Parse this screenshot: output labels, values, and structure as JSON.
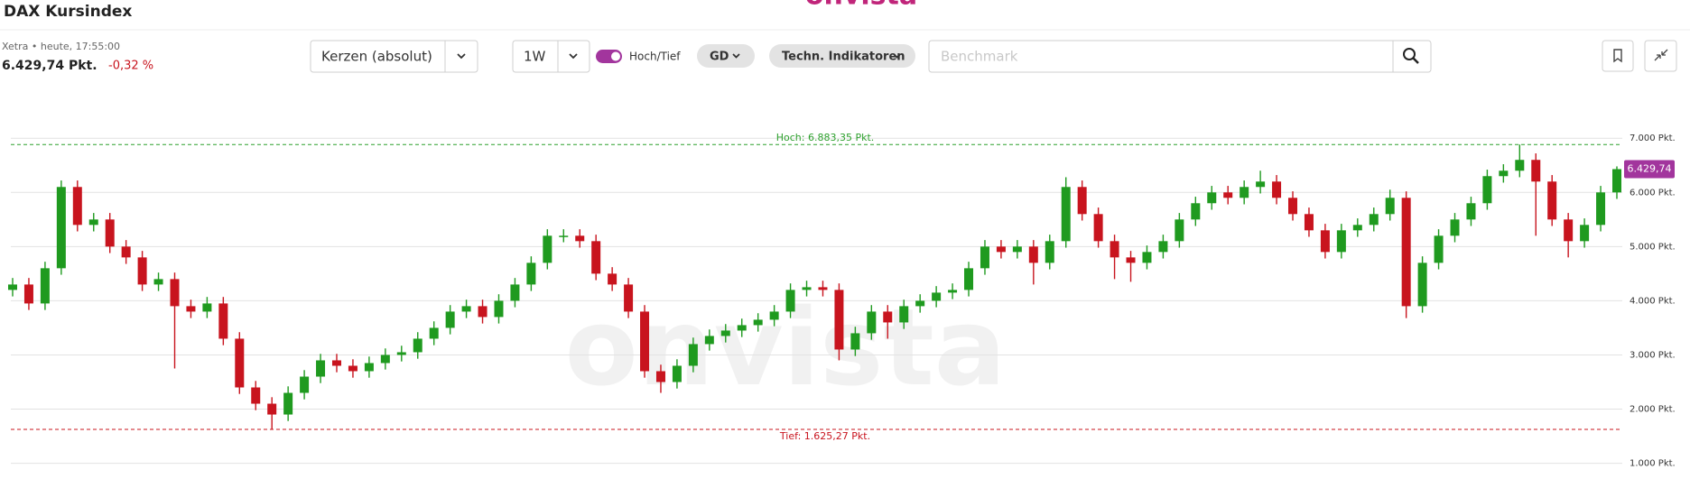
{
  "header": {
    "title": "DAX Kursindex",
    "logo": "onvista",
    "exchange": "Xetra • heute, 17:55:00",
    "price": "6.429,74 Pkt.",
    "change": "-0,32 %"
  },
  "toolbar": {
    "chart_type": "Kerzen (absolut)",
    "period": "1W",
    "toggle": "Hoch/Tief",
    "average": "GD",
    "indicators": "Techn. Indikatoren",
    "benchmark_placeholder": "Benchmark"
  },
  "watermark": "onvista",
  "chart_data": {
    "type": "candlestick",
    "open": [
      4200,
      4300,
      3950,
      4600,
      6100,
      5400,
      5500,
      5000,
      4800,
      4300,
      4400,
      3900,
      3800,
      3950,
      3300,
      2400,
      2100,
      1900,
      2300,
      2600,
      2900,
      2800,
      2700,
      2850,
      3000,
      3050,
      3300,
      3500,
      3800,
      3900,
      3700,
      4000,
      4300,
      4700,
      5200,
      5200,
      5100,
      4500,
      4300,
      3800,
      2700,
      2500,
      2800,
      3200,
      3350,
      3450,
      3550,
      3650,
      3800,
      4200,
      4250,
      4200,
      3100,
      3400,
      3800,
      3600,
      3900,
      4000,
      4150,
      4200,
      4600,
      5000,
      4900,
      5000,
      4700,
      5100,
      6100,
      5600,
      5100,
      4800,
      4700,
      4900,
      5100,
      5500,
      5800,
      6000,
      5900,
      6100,
      6200,
      5900,
      5600,
      5300,
      4900,
      5300,
      5400,
      5600,
      5900,
      3900,
      4700,
      5200,
      5500,
      5800,
      6300,
      6400,
      6600,
      6200,
      5500,
      5100,
      5400,
      6000
    ],
    "high": [
      4420,
      4420,
      4720,
      6220,
      6220,
      5620,
      5620,
      5120,
      4920,
      4520,
      4520,
      4020,
      4070,
      4070,
      3420,
      2520,
      2220,
      2420,
      2720,
      3020,
      3020,
      2920,
      2970,
      3120,
      3170,
      3420,
      3620,
      3920,
      4020,
      4020,
      4120,
      4420,
      4820,
      5320,
      5320,
      5320,
      5220,
      4620,
      4420,
      3920,
      2820,
      2920,
      3320,
      3470,
      3570,
      3670,
      3770,
      3920,
      4320,
      4370,
      4370,
      4320,
      3520,
      3920,
      3920,
      4020,
      4120,
      4270,
      4320,
      4720,
      5120,
      5120,
      5120,
      5120,
      5220,
      6280,
      6220,
      5720,
      5220,
      4920,
      5020,
      5220,
      5620,
      5920,
      6120,
      6120,
      6220,
      6400,
      6320,
      6020,
      5720,
      5420,
      5420,
      5520,
      5720,
      6050,
      6020,
      4820,
      5320,
      5620,
      5920,
      6420,
      6520,
      6883.35,
      6720,
      6320,
      5620,
      5520,
      6120,
      6480
    ],
    "low": [
      4080,
      3830,
      3830,
      4480,
      5280,
      5280,
      4880,
      4680,
      4180,
      4180,
      2750,
      3680,
      3680,
      3180,
      2280,
      1980,
      1625.27,
      1780,
      2180,
      2480,
      2680,
      2580,
      2580,
      2730,
      2880,
      2930,
      3180,
      3380,
      3680,
      3580,
      3580,
      3880,
      4180,
      4580,
      5080,
      4980,
      4380,
      4180,
      3680,
      2580,
      2300,
      2380,
      2680,
      3080,
      3230,
      3330,
      3430,
      3530,
      3680,
      4080,
      4080,
      2900,
      2980,
      3280,
      3300,
      3480,
      3780,
      3880,
      4030,
      4080,
      4480,
      4780,
      4780,
      4300,
      4580,
      4980,
      5480,
      4980,
      4400,
      4350,
      4580,
      4780,
      4980,
      5380,
      5680,
      5780,
      5780,
      5980,
      5780,
      5480,
      5180,
      4780,
      4780,
      5180,
      5280,
      5480,
      3680,
      3780,
      4580,
      5080,
      5380,
      5680,
      6180,
      6280,
      5200,
      5380,
      4800,
      4980,
      5280,
      5880
    ],
    "close": [
      4300,
      3950,
      4600,
      6100,
      5400,
      5500,
      5000,
      4800,
      4300,
      4400,
      3900,
      3800,
      3950,
      3300,
      2400,
      2100,
      1900,
      2300,
      2600,
      2900,
      2800,
      2700,
      2850,
      3000,
      3050,
      3300,
      3500,
      3800,
      3900,
      3700,
      4000,
      4300,
      4700,
      5200,
      5200,
      5100,
      4500,
      4300,
      3800,
      2700,
      2500,
      2800,
      3200,
      3350,
      3450,
      3550,
      3650,
      3800,
      4200,
      4250,
      4200,
      3100,
      3400,
      3800,
      3600,
      3900,
      4000,
      4150,
      4200,
      4600,
      5000,
      4900,
      5000,
      4700,
      5100,
      6100,
      5600,
      5100,
      4800,
      4700,
      4900,
      5100,
      5500,
      5800,
      6000,
      5900,
      6100,
      6200,
      5900,
      5600,
      5300,
      4900,
      5300,
      5400,
      5600,
      5900,
      3900,
      4700,
      5200,
      5500,
      5800,
      6300,
      6400,
      6600,
      6200,
      5500,
      5100,
      5400,
      6000,
      6429.74
    ],
    "ylim": [
      860,
      7270
    ],
    "yticks": [
      {
        "value": 1000,
        "label": "1.000 Pkt."
      },
      {
        "value": 2000,
        "label": "2.000 Pkt."
      },
      {
        "value": 3000,
        "label": "3.000 Pkt."
      },
      {
        "value": 4000,
        "label": "4.000 Pkt."
      },
      {
        "value": 5000,
        "label": "5.000 Pkt."
      },
      {
        "value": 6000,
        "label": "6.000 Pkt."
      },
      {
        "value": 7000,
        "label": "7.000 Pkt."
      }
    ],
    "high_line": {
      "value": 6883.35,
      "label": "Hoch: 6.883,35 Pkt."
    },
    "low_line": {
      "value": 1625.27,
      "label": "Tief: 1.625,27 Pkt."
    },
    "last": {
      "value": 6429.74,
      "label": "6.429,74"
    },
    "grid": true,
    "colors": {
      "up": "#1f9a1f",
      "down": "#c8141e",
      "high_line": "#2da02d",
      "low_line": "#c8141e",
      "last": "#a2359d"
    }
  }
}
